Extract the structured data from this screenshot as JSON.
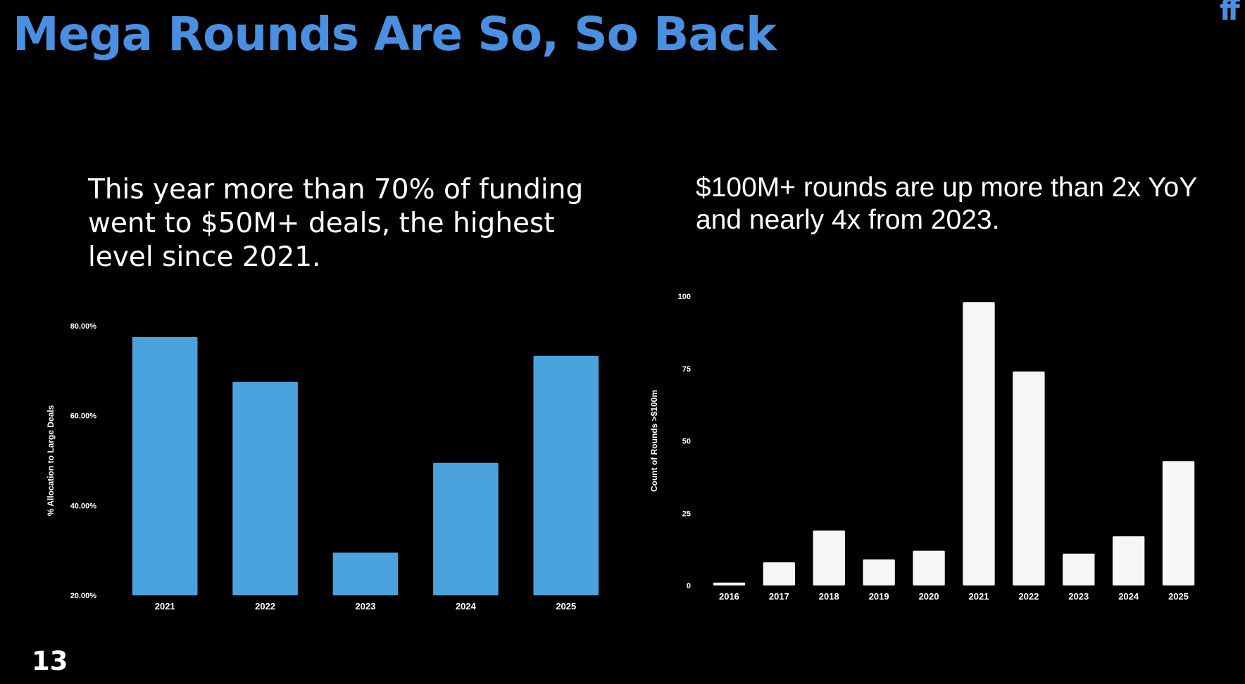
{
  "slide": {
    "title": "Mega Rounds Are So, So Back",
    "logo_text": "ff",
    "page_number": "13",
    "left_caption": "This year more than 70% of funding went to $50M+ deals, the highest level since 2021.",
    "right_caption": "$100M+ rounds are up more than 2x YoY and nearly 4x from 2023."
  },
  "colors": {
    "title": "#4a90e2",
    "left_bars": "#4aa3dc",
    "right_bars": "#f5f6f8"
  },
  "chart_data": [
    {
      "type": "bar",
      "categories": [
        "2021",
        "2022",
        "2023",
        "2024",
        "2025"
      ],
      "values": [
        77.5,
        67.5,
        29.5,
        49.5,
        73.3
      ],
      "ylabel": "% Allocation to Large Deals",
      "ylim": [
        20,
        80
      ],
      "yticks": [
        "20.00%",
        "40.00%",
        "60.00%",
        "80.00%"
      ],
      "ytick_values": [
        20,
        40,
        60,
        80
      ],
      "grid": false
    },
    {
      "type": "bar",
      "categories": [
        "2016",
        "2017",
        "2018",
        "2019",
        "2020",
        "2021",
        "2022",
        "2023",
        "2024",
        "2025"
      ],
      "values": [
        1,
        8,
        19,
        9,
        12,
        98,
        74,
        11,
        17,
        43
      ],
      "ylabel": "Count of Rounds >$100m",
      "ylim": [
        0,
        100
      ],
      "yticks": [
        "0",
        "25",
        "50",
        "75",
        "100"
      ],
      "ytick_values": [
        0,
        25,
        50,
        75,
        100
      ],
      "grid": false
    }
  ]
}
